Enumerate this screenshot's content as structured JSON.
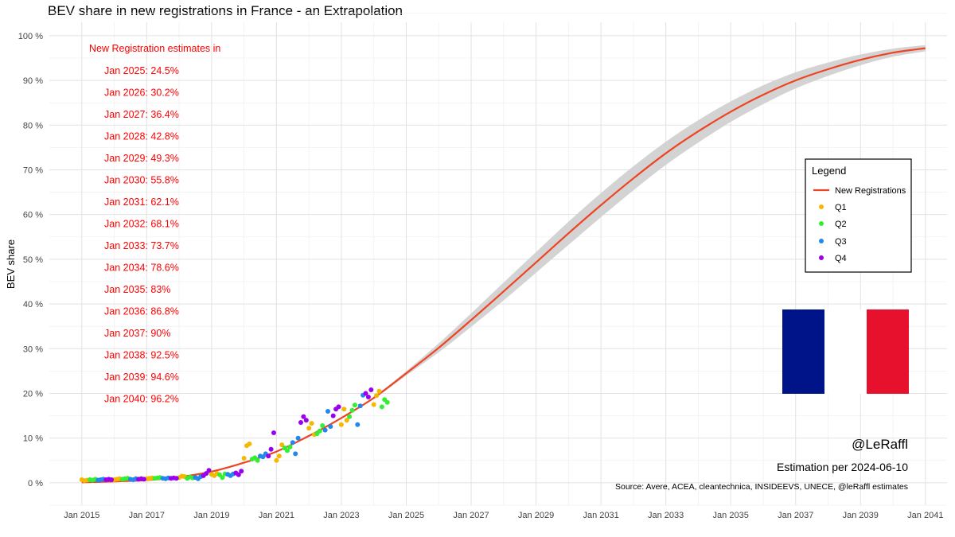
{
  "chart_data": {
    "type": "line",
    "title": "BEV share in new registrations in France - an Extrapolation",
    "xlabel": "",
    "ylabel": "BEV share",
    "x_range": [
      "2014-01",
      "2041-09"
    ],
    "ylim": [
      -5,
      103
    ],
    "x_ticks": [
      "Jan 2015",
      "Jan 2017",
      "Jan 2019",
      "Jan 2021",
      "Jan 2023",
      "Jan 2025",
      "Jan 2027",
      "Jan 2029",
      "Jan 2031",
      "Jan 2033",
      "Jan 2035",
      "Jan 2037",
      "Jan 2039",
      "Jan 2041"
    ],
    "y_ticks": [
      0,
      10,
      20,
      30,
      40,
      50,
      60,
      70,
      80,
      90,
      100
    ],
    "y_tick_suffix": " %",
    "grid": true,
    "legend_position": "right",
    "series": [
      {
        "name": "New Registrations",
        "kind": "fit_line",
        "color": "#ee4422",
        "band_color": "#d3d3d3",
        "points": [
          {
            "x": "2015-01",
            "y": 0.1,
            "lo": 0.1,
            "hi": 0.1
          },
          {
            "x": "2016-01",
            "y": 0.3,
            "lo": 0.3,
            "hi": 0.3
          },
          {
            "x": "2017-01",
            "y": 0.6,
            "lo": 0.6,
            "hi": 0.6
          },
          {
            "x": "2018-01",
            "y": 1.3,
            "lo": 1.3,
            "hi": 1.3
          },
          {
            "x": "2019-01",
            "y": 2.5,
            "lo": 2.5,
            "hi": 2.5
          },
          {
            "x": "2020-01",
            "y": 4.5,
            "lo": 4.5,
            "hi": 4.5
          },
          {
            "x": "2021-01",
            "y": 7.0,
            "lo": 7.0,
            "hi": 7.0
          },
          {
            "x": "2022-01",
            "y": 10.5,
            "lo": 10.5,
            "hi": 10.5
          },
          {
            "x": "2023-01",
            "y": 14.5,
            "lo": 14.5,
            "hi": 14.5
          },
          {
            "x": "2024-01",
            "y": 19.0,
            "lo": 18.8,
            "hi": 19.2
          },
          {
            "x": "2025-01",
            "y": 24.5,
            "lo": 24.0,
            "hi": 25.0
          },
          {
            "x": "2026-01",
            "y": 30.2,
            "lo": 29.2,
            "hi": 31.2
          },
          {
            "x": "2027-01",
            "y": 36.4,
            "lo": 34.9,
            "hi": 37.9
          },
          {
            "x": "2028-01",
            "y": 42.8,
            "lo": 40.8,
            "hi": 44.8
          },
          {
            "x": "2029-01",
            "y": 49.3,
            "lo": 47.0,
            "hi": 51.6
          },
          {
            "x": "2030-01",
            "y": 55.8,
            "lo": 53.2,
            "hi": 58.4
          },
          {
            "x": "2031-01",
            "y": 62.1,
            "lo": 59.4,
            "hi": 64.8
          },
          {
            "x": "2032-01",
            "y": 68.1,
            "lo": 65.4,
            "hi": 70.8
          },
          {
            "x": "2033-01",
            "y": 73.7,
            "lo": 71.1,
            "hi": 76.3
          },
          {
            "x": "2034-01",
            "y": 78.6,
            "lo": 76.1,
            "hi": 81.1
          },
          {
            "x": "2035-01",
            "y": 83.0,
            "lo": 80.7,
            "hi": 85.3
          },
          {
            "x": "2036-01",
            "y": 86.8,
            "lo": 84.7,
            "hi": 88.9
          },
          {
            "x": "2037-01",
            "y": 90.0,
            "lo": 88.2,
            "hi": 91.8
          },
          {
            "x": "2038-01",
            "y": 92.5,
            "lo": 91.0,
            "hi": 94.0
          },
          {
            "x": "2039-01",
            "y": 94.6,
            "lo": 93.4,
            "hi": 95.8
          },
          {
            "x": "2040-01",
            "y": 96.2,
            "lo": 95.3,
            "hi": 97.1
          },
          {
            "x": "2041-01",
            "y": 97.2,
            "lo": 96.5,
            "hi": 97.9
          }
        ]
      },
      {
        "name": "Q1",
        "kind": "points",
        "color": "#f5b800",
        "points": [
          {
            "x": "2015-01",
            "y": 0.7
          },
          {
            "x": "2015-02",
            "y": 0.5
          },
          {
            "x": "2015-03",
            "y": 0.6
          },
          {
            "x": "2016-01",
            "y": 0.7
          },
          {
            "x": "2016-02",
            "y": 0.8
          },
          {
            "x": "2016-03",
            "y": 0.9
          },
          {
            "x": "2017-01",
            "y": 0.9
          },
          {
            "x": "2017-02",
            "y": 1.0
          },
          {
            "x": "2017-03",
            "y": 1.1
          },
          {
            "x": "2018-01",
            "y": 1.2
          },
          {
            "x": "2018-02",
            "y": 1.5
          },
          {
            "x": "2018-03",
            "y": 1.4
          },
          {
            "x": "2019-01",
            "y": 1.9
          },
          {
            "x": "2019-02",
            "y": 1.6
          },
          {
            "x": "2019-03",
            "y": 2.1
          },
          {
            "x": "2020-01",
            "y": 5.5
          },
          {
            "x": "2020-02",
            "y": 8.3
          },
          {
            "x": "2020-03",
            "y": 8.7
          },
          {
            "x": "2021-01",
            "y": 5.0
          },
          {
            "x": "2021-02",
            "y": 6.0
          },
          {
            "x": "2021-03",
            "y": 8.5
          },
          {
            "x": "2022-01",
            "y": 12.2
          },
          {
            "x": "2022-02",
            "y": 13.3
          },
          {
            "x": "2022-03",
            "y": 10.8
          },
          {
            "x": "2023-01",
            "y": 13.0
          },
          {
            "x": "2023-02",
            "y": 16.5
          },
          {
            "x": "2023-03",
            "y": 14.0
          },
          {
            "x": "2024-01",
            "y": 17.5
          },
          {
            "x": "2024-02",
            "y": 19.5
          },
          {
            "x": "2024-03",
            "y": 20.5
          }
        ]
      },
      {
        "name": "Q2",
        "kind": "points",
        "color": "#33ee33",
        "points": [
          {
            "x": "2015-04",
            "y": 0.7
          },
          {
            "x": "2015-05",
            "y": 0.6
          },
          {
            "x": "2015-06",
            "y": 0.8
          },
          {
            "x": "2016-04",
            "y": 0.8
          },
          {
            "x": "2016-05",
            "y": 0.9
          },
          {
            "x": "2016-06",
            "y": 1.0
          },
          {
            "x": "2017-04",
            "y": 1.0
          },
          {
            "x": "2017-05",
            "y": 1.1
          },
          {
            "x": "2017-06",
            "y": 1.2
          },
          {
            "x": "2018-04",
            "y": 1.0
          },
          {
            "x": "2018-05",
            "y": 1.3
          },
          {
            "x": "2018-06",
            "y": 1.1
          },
          {
            "x": "2019-04",
            "y": 1.8
          },
          {
            "x": "2019-05",
            "y": 1.2
          },
          {
            "x": "2019-06",
            "y": 2.0
          },
          {
            "x": "2020-04",
            "y": 5.3
          },
          {
            "x": "2020-05",
            "y": 5.6
          },
          {
            "x": "2020-06",
            "y": 5.0
          },
          {
            "x": "2021-04",
            "y": 7.8
          },
          {
            "x": "2021-05",
            "y": 7.2
          },
          {
            "x": "2021-06",
            "y": 8.0
          },
          {
            "x": "2022-04",
            "y": 11.0
          },
          {
            "x": "2022-05",
            "y": 11.6
          },
          {
            "x": "2022-06",
            "y": 12.8
          },
          {
            "x": "2023-04",
            "y": 14.8
          },
          {
            "x": "2023-05",
            "y": 16.2
          },
          {
            "x": "2023-06",
            "y": 17.4
          },
          {
            "x": "2024-04",
            "y": 17.0
          },
          {
            "x": "2024-05",
            "y": 18.6
          },
          {
            "x": "2024-06",
            "y": 18.0
          }
        ]
      },
      {
        "name": "Q3",
        "kind": "points",
        "color": "#2288ee",
        "points": [
          {
            "x": "2015-07",
            "y": 0.6
          },
          {
            "x": "2015-08",
            "y": 0.7
          },
          {
            "x": "2015-09",
            "y": 0.8
          },
          {
            "x": "2016-07",
            "y": 0.8
          },
          {
            "x": "2016-08",
            "y": 0.7
          },
          {
            "x": "2016-09",
            "y": 0.9
          },
          {
            "x": "2017-07",
            "y": 1.0
          },
          {
            "x": "2017-08",
            "y": 0.9
          },
          {
            "x": "2017-09",
            "y": 1.1
          },
          {
            "x": "2018-07",
            "y": 1.2
          },
          {
            "x": "2018-08",
            "y": 0.9
          },
          {
            "x": "2018-09",
            "y": 1.4
          },
          {
            "x": "2019-07",
            "y": 1.9
          },
          {
            "x": "2019-08",
            "y": 1.6
          },
          {
            "x": "2019-09",
            "y": 2.0
          },
          {
            "x": "2020-07",
            "y": 6.0
          },
          {
            "x": "2020-08",
            "y": 5.8
          },
          {
            "x": "2020-09",
            "y": 6.5
          },
          {
            "x": "2021-07",
            "y": 9.0
          },
          {
            "x": "2021-08",
            "y": 6.5
          },
          {
            "x": "2021-09",
            "y": 10.0
          },
          {
            "x": "2022-07",
            "y": 11.8
          },
          {
            "x": "2022-08",
            "y": 16.0
          },
          {
            "x": "2022-09",
            "y": 12.6
          },
          {
            "x": "2023-07",
            "y": 13.0
          },
          {
            "x": "2023-08",
            "y": 17.2
          },
          {
            "x": "2023-09",
            "y": 19.6
          }
        ]
      },
      {
        "name": "Q4",
        "kind": "points",
        "color": "#9900ee",
        "points": [
          {
            "x": "2015-10",
            "y": 0.7
          },
          {
            "x": "2015-11",
            "y": 0.8
          },
          {
            "x": "2015-12",
            "y": 0.7
          },
          {
            "x": "2016-10",
            "y": 0.8
          },
          {
            "x": "2016-11",
            "y": 0.9
          },
          {
            "x": "2016-12",
            "y": 0.8
          },
          {
            "x": "2017-10",
            "y": 1.0
          },
          {
            "x": "2017-11",
            "y": 1.1
          },
          {
            "x": "2017-12",
            "y": 1.0
          },
          {
            "x": "2018-10",
            "y": 1.6
          },
          {
            "x": "2018-11",
            "y": 2.1
          },
          {
            "x": "2018-12",
            "y": 2.8
          },
          {
            "x": "2019-10",
            "y": 2.2
          },
          {
            "x": "2019-11",
            "y": 1.8
          },
          {
            "x": "2019-12",
            "y": 2.6
          },
          {
            "x": "2020-10",
            "y": 6.0
          },
          {
            "x": "2020-11",
            "y": 7.5
          },
          {
            "x": "2020-12",
            "y": 11.2
          },
          {
            "x": "2021-10",
            "y": 13.5
          },
          {
            "x": "2021-11",
            "y": 14.8
          },
          {
            "x": "2021-12",
            "y": 14.0
          },
          {
            "x": "2022-10",
            "y": 15.0
          },
          {
            "x": "2022-11",
            "y": 16.5
          },
          {
            "x": "2022-12",
            "y": 17.0
          },
          {
            "x": "2023-10",
            "y": 20.0
          },
          {
            "x": "2023-11",
            "y": 19.2
          },
          {
            "x": "2023-12",
            "y": 20.8
          }
        ]
      }
    ],
    "annotation": {
      "heading": "New Registration estimates in",
      "color": "#ff0000",
      "lines": [
        "Jan 2025: 24.5%",
        "Jan 2026: 30.2%",
        "Jan 2027: 36.4%",
        "Jan 2028: 42.8%",
        "Jan 2029: 49.3%",
        "Jan 2030: 55.8%",
        "Jan 2031: 62.1%",
        "Jan 2032: 68.1%",
        "Jan 2033: 73.7%",
        "Jan 2034: 78.6%",
        "Jan 2035: 83%",
        "Jan 2036: 86.8%",
        "Jan 2037: 90%",
        "Jan 2038: 92.5%",
        "Jan 2039: 94.6%",
        "Jan 2040: 96.2%"
      ]
    },
    "legend": {
      "title": "Legend",
      "items": [
        "New Registrations",
        "Q1",
        "Q2",
        "Q3",
        "Q4"
      ]
    },
    "credits": {
      "handle": "@LeRaffl",
      "estimation": "Estimation per 2024-06-10",
      "source": "Source: Avere, ACEA, cleantechnica, INSIDEEVS, UNECE, @leRaffl estimates"
    },
    "flag": {
      "colors": [
        "#001489",
        "#ffffff",
        "#e8112d"
      ]
    }
  }
}
